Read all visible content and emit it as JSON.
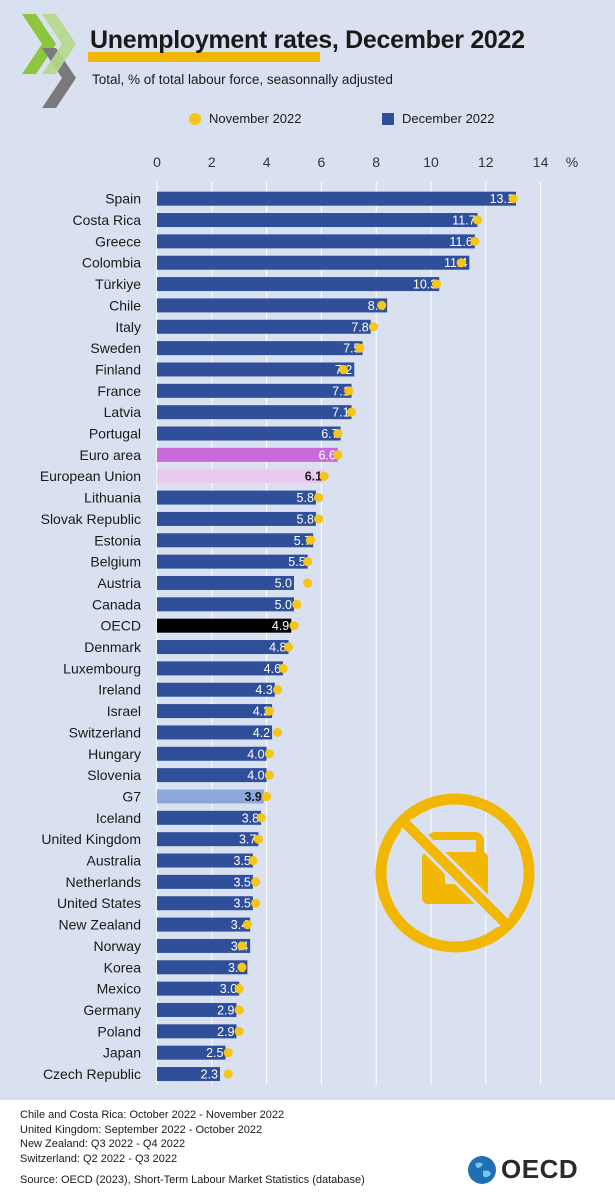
{
  "header": {
    "title": "Unemployment rates, December 2022",
    "subtitle": "Total, % of total labour force, seasonnally adjusted"
  },
  "legend": {
    "nov_label": "November 2022",
    "dec_label": "December 2022"
  },
  "colors": {
    "bar": "#2f4f9a",
    "dot": "#f5c518",
    "euro_area": "#c86ad8",
    "european_union": "#ecc9ef",
    "oecd": "#000000",
    "g7": "#8fa8dc",
    "background": "#d9e1f0"
  },
  "chart_data": {
    "type": "bar",
    "orientation": "horizontal",
    "unit_label": "%",
    "xlim": [
      0,
      14
    ],
    "ticks": [
      "0",
      "2",
      "4",
      "6",
      "8",
      "10",
      "12",
      "14"
    ],
    "grid": true,
    "legend_position": "top",
    "categories": [
      "Spain",
      "Costa Rica",
      "Greece",
      "Colombia",
      "Türkiye",
      "Chile",
      "Italy",
      "Sweden",
      "Finland",
      "France",
      "Latvia",
      "Portugal",
      "Euro area",
      "European Union",
      "Lithuania",
      "Slovak Republic",
      "Estonia",
      "Belgium",
      "Austria",
      "Canada",
      "OECD",
      "Denmark",
      "Luxembourg",
      "Ireland",
      "Israel",
      "Switzerland",
      "Hungary",
      "Slovenia",
      "G7",
      "Iceland",
      "United Kingdom",
      "Australia",
      "Netherlands",
      "United States",
      "New Zealand",
      "Norway",
      "Korea",
      "Mexico",
      "Germany",
      "Poland",
      "Japan",
      "Czech Republic"
    ],
    "series": [
      {
        "name": "December 2022",
        "values": [
          13.1,
          11.7,
          11.6,
          11.4,
          10.3,
          8.4,
          7.8,
          7.5,
          7.2,
          7.1,
          7.1,
          6.7,
          6.6,
          6.1,
          5.8,
          5.8,
          5.7,
          5.5,
          5.0,
          5.0,
          4.9,
          4.8,
          4.6,
          4.3,
          4.2,
          4.2,
          4.0,
          4.0,
          3.9,
          3.8,
          3.7,
          3.5,
          3.5,
          3.5,
          3.4,
          3.4,
          3.3,
          3.0,
          2.9,
          2.9,
          2.5,
          2.3
        ],
        "labels": [
          "13.1",
          "11.7",
          "11.6",
          "11.4",
          "10.3",
          "8.4",
          "7.8",
          "7.5",
          "7.2",
          "7.1",
          "7.1",
          "6.7",
          "6.6",
          "6.1",
          "5.8",
          "5.8",
          "5.7",
          "5.5",
          "5.0",
          "5.0",
          "4.9",
          "4.8",
          "4.6",
          "4.3",
          "4.2",
          "4.2",
          "4.0",
          "4.0",
          "3.9",
          "3.8",
          "3.7",
          "3.5",
          "3.5",
          "3.5",
          "3.4",
          "3.4",
          "3.3",
          "3.0",
          "2.9",
          "2.9",
          "2.5",
          "2.3"
        ]
      },
      {
        "name": "November 2022",
        "values": [
          13.0,
          11.7,
          11.6,
          11.1,
          10.2,
          8.2,
          7.9,
          7.4,
          6.8,
          7.0,
          7.1,
          6.6,
          6.6,
          6.1,
          5.9,
          5.9,
          5.6,
          5.5,
          5.5,
          5.1,
          5.0,
          4.8,
          4.6,
          4.4,
          4.1,
          4.4,
          4.1,
          4.1,
          4.0,
          3.8,
          3.7,
          3.5,
          3.6,
          3.6,
          3.3,
          3.1,
          3.1,
          3.0,
          3.0,
          3.0,
          2.6,
          2.6
        ]
      }
    ],
    "highlights": {
      "Euro area": "euro_area",
      "European Union": "european_union",
      "OECD": "oecd",
      "G7": "g7"
    }
  },
  "footer": {
    "notes": [
      "Chile and Costa Rica: October 2022 - November 2022",
      "United Kingdom: September 2022 - October 2022",
      "New Zealand: Q3 2022 - Q4 2022",
      "Switzerland: Q2 2022 - Q3 2022"
    ],
    "source": "Source: OECD (2023), Short-Term Labour Market Statistics (database)",
    "logo_text": "OECD"
  }
}
